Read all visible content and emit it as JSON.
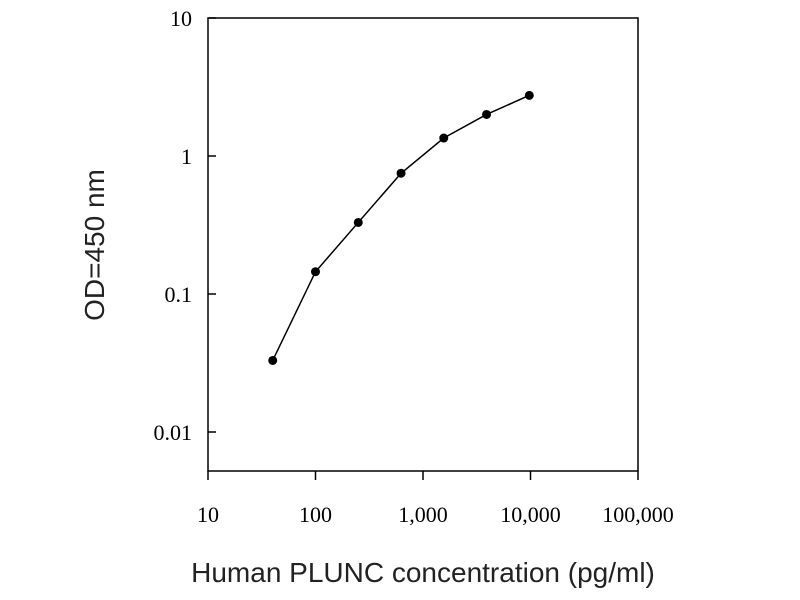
{
  "chart_data": {
    "type": "line",
    "title": "",
    "xlabel": "Human PLUNC concentration (pg/ml)",
    "ylabel": "OD=450 nm",
    "x_scale": "log",
    "y_scale": "log",
    "xlim": [
      10,
      100000
    ],
    "ylim": [
      0.005,
      10
    ],
    "x_ticks": [
      10,
      100,
      1000,
      10000,
      100000
    ],
    "x_tick_labels": [
      "10",
      "100",
      "1,000",
      "10,000",
      "100,000"
    ],
    "y_ticks": [
      0.01,
      0.1,
      1,
      10
    ],
    "y_tick_labels": [
      "0.01",
      "0.1",
      "1",
      "10"
    ],
    "grid": false,
    "legend": "none",
    "series": [
      {
        "x": [
          40,
          100,
          250,
          625,
          1560,
          3900,
          9750
        ],
        "y": [
          0.033,
          0.145,
          0.33,
          0.75,
          1.35,
          2.0,
          2.75
        ]
      }
    ]
  }
}
